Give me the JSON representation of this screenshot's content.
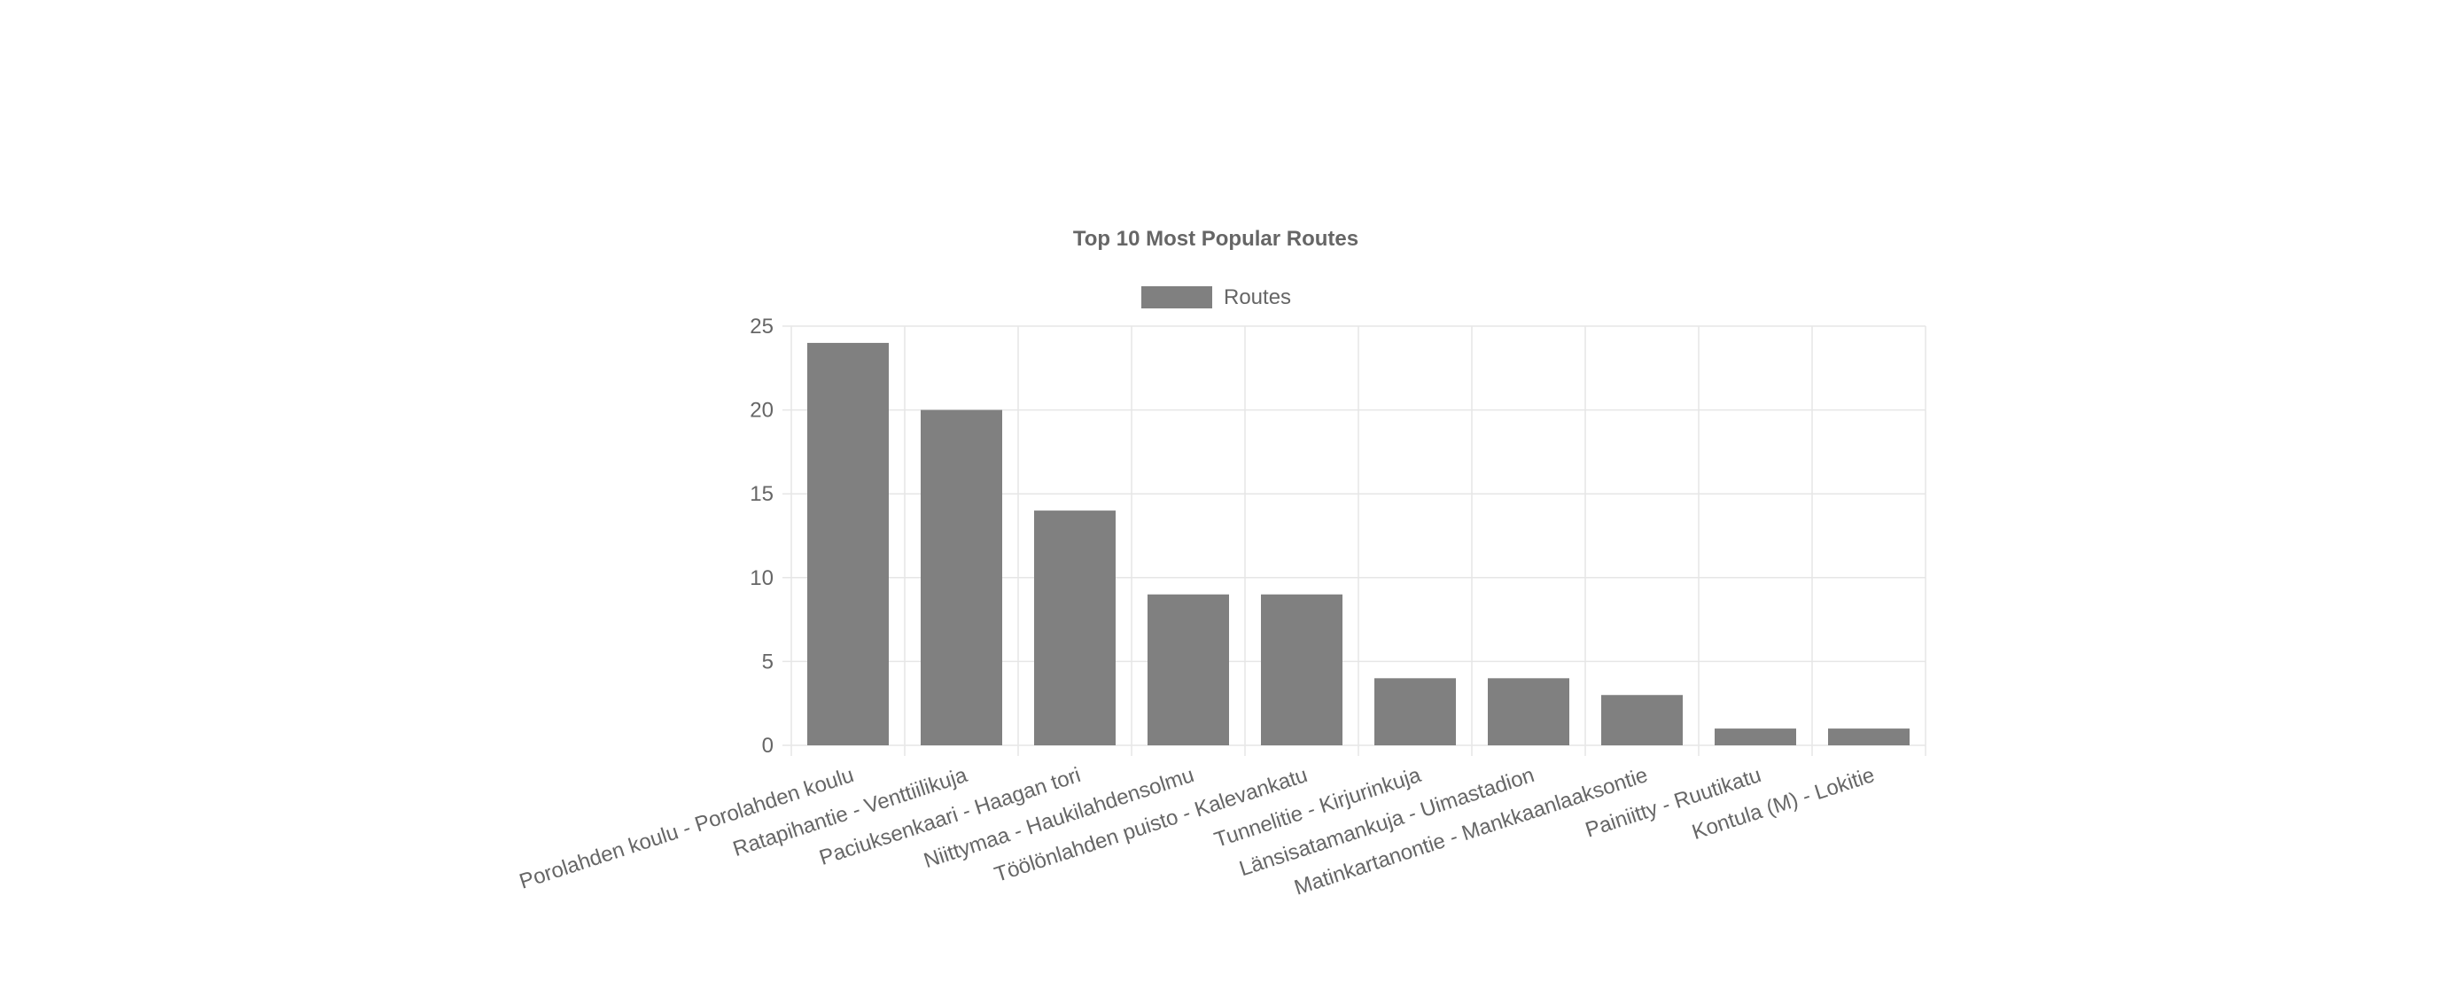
{
  "chart_data": {
    "type": "bar",
    "title": "Top 10 Most Popular Routes",
    "legend": {
      "label": "Routes",
      "placement": "top-center"
    },
    "categories": [
      "Porolahden koulu - Porolahden koulu",
      "Ratapihantie - Venttiilikuja",
      "Paciuksenkaari - Haagan tori",
      "Niittymaa - Haukilahdensolmu",
      "Töölönlahden puisto - Kalevankatu",
      "Tunnelitie - Kirjurinkuja",
      "Länsisatamankuja - Uimastadion",
      "Matinkartanontie - Mankkaanlaaksontie",
      "Painiitty - Ruutikatu",
      "Kontula (M) - Lokitie"
    ],
    "series": [
      {
        "name": "Routes",
        "values": [
          24,
          20,
          14,
          9,
          9,
          4,
          4,
          3,
          1,
          1
        ]
      }
    ],
    "ylim": [
      0,
      25
    ],
    "yticks": [
      "0",
      "5",
      "10",
      "15",
      "20",
      "25"
    ],
    "grid": true,
    "colors": {
      "bar": "#808080",
      "grid": "#e6e6e6",
      "text": "#666666"
    }
  }
}
